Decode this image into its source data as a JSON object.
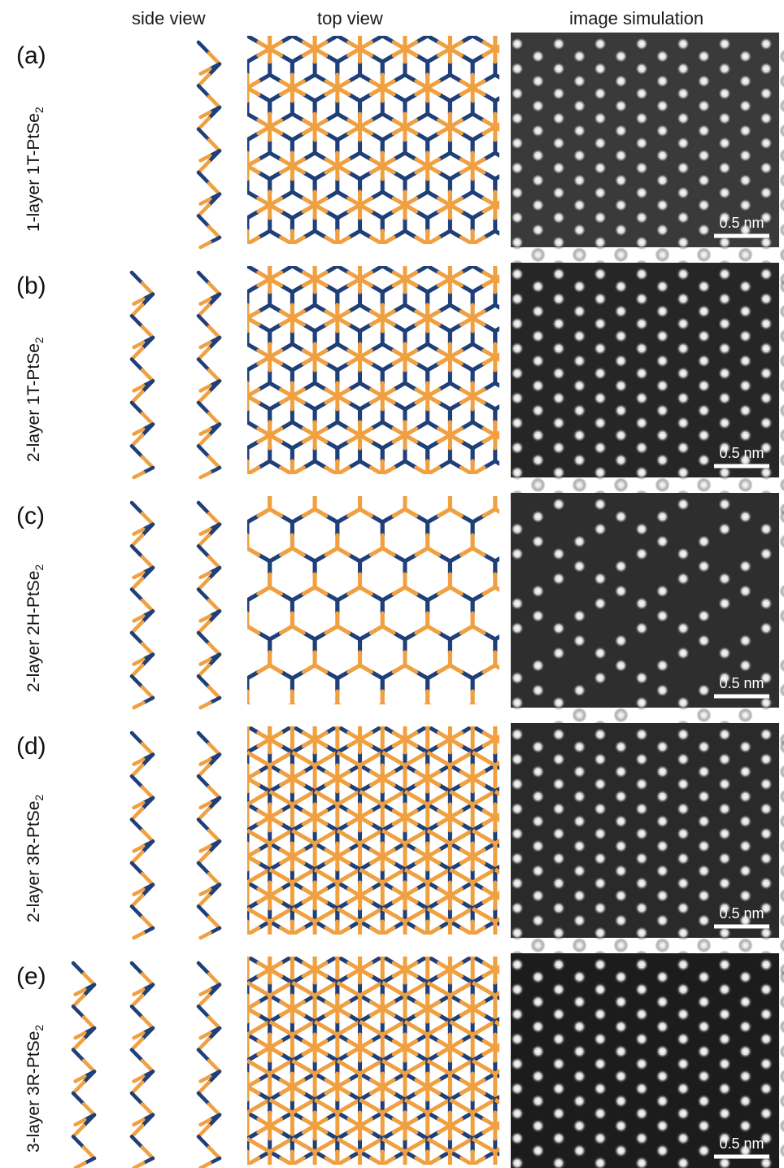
{
  "headers": {
    "side": "side view",
    "top": "top view",
    "sim": "image simulation"
  },
  "colors": {
    "pt": "#1f3f78",
    "se": "#f0a040"
  },
  "scalebar": "0.5 nm",
  "panels": [
    {
      "letter": "(a)",
      "pre": "1-layer 1T-PtSe",
      "sub": "2",
      "side_layers": 1,
      "top": "1T",
      "sim_bg": "#3a3a3a"
    },
    {
      "letter": "(b)",
      "pre": "2-layer 1T-PtSe",
      "sub": "2",
      "side_layers": 2,
      "top": "1T",
      "sim_bg": "#262626"
    },
    {
      "letter": "(c)",
      "pre": "2-layer 2H-PtSe",
      "sub": "2",
      "side_layers": 2,
      "top": "2H",
      "sim_bg": "#2e2e2e"
    },
    {
      "letter": "(d)",
      "pre": "2-layer 3R-PtSe",
      "sub": "2",
      "side_layers": 2,
      "top": "3R",
      "sim_bg": "#2a2a2a"
    },
    {
      "letter": "(e)",
      "pre": "3-layer 3R-PtSe",
      "sub": "2",
      "side_layers": 3,
      "top": "3R",
      "sim_bg": "#1c1c1c"
    }
  ]
}
